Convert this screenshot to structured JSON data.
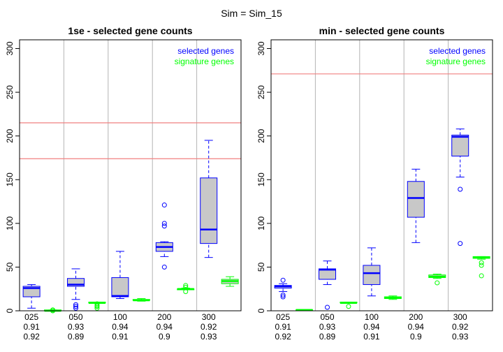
{
  "suptitle": "Sim = Sim_15",
  "chart_data": [
    {
      "type": "boxplot",
      "title": "1se - selected gene counts",
      "ylim": [
        0,
        310
      ],
      "yticks": [
        0,
        50,
        100,
        150,
        200,
        250,
        300
      ],
      "categories": [
        "025",
        "050",
        "100",
        "200",
        "300"
      ],
      "row2_labels": [
        "0.91",
        "0.93",
        "0.94",
        "0.94",
        "0.92"
      ],
      "row3_labels": [
        "0.92",
        "0.89",
        "0.91",
        "0.9",
        "0.93"
      ],
      "legend": {
        "position": "top-right",
        "entries": [
          {
            "name": "selected genes",
            "color": "#0000ff"
          },
          {
            "name": "signature genes",
            "color": "#00ff00"
          }
        ]
      },
      "hlines": [
        215,
        174
      ],
      "hline_color": "#f08080",
      "grid": "vertical",
      "series": [
        {
          "name": "selected genes",
          "color": "#0000ff",
          "fill": "#c8c8c8",
          "boxes": [
            {
              "min": 3,
              "q1": 16,
              "median": 26,
              "q3": 28,
              "max": 30,
              "outliers": []
            },
            {
              "min": 13,
              "q1": 28,
              "median": 30,
              "q3": 37,
              "max": 48,
              "outliers": [
                5,
                3,
                7
              ]
            },
            {
              "min": 14,
              "q1": 16,
              "median": 17,
              "q3": 38,
              "max": 68,
              "outliers": []
            },
            {
              "min": 62,
              "q1": 68,
              "median": 73,
              "q3": 78,
              "max": 79,
              "outliers": [
                121,
                100,
                97,
                50
              ]
            },
            {
              "min": 61,
              "q1": 77,
              "median": 93,
              "q3": 152,
              "max": 195,
              "outliers": []
            }
          ]
        },
        {
          "name": "signature genes",
          "color": "#00ff00",
          "fill": "#c8c8c8",
          "boxes": [
            {
              "min": 0,
              "q1": 0,
              "median": 0,
              "q3": 1,
              "max": 1,
              "outliers": [
                1,
                0
              ]
            },
            {
              "min": 9,
              "q1": 9,
              "median": 9,
              "q3": 10,
              "max": 10,
              "outliers": [
                3,
                5,
                6,
                8
              ]
            },
            {
              "min": 11,
              "q1": 12,
              "median": 12,
              "q3": 13,
              "max": 14,
              "outliers": []
            },
            {
              "min": 24,
              "q1": 24,
              "median": 25,
              "q3": 25,
              "max": 26,
              "outliers": [
                29,
                27,
                22
              ]
            },
            {
              "min": 28,
              "q1": 31,
              "median": 34,
              "q3": 36,
              "max": 39,
              "outliers": []
            }
          ]
        }
      ]
    },
    {
      "type": "boxplot",
      "title": "min - selected gene counts",
      "ylim": [
        0,
        310
      ],
      "yticks": [
        0,
        50,
        100,
        150,
        200,
        250,
        300
      ],
      "categories": [
        "025",
        "050",
        "100",
        "200",
        "300"
      ],
      "row2_labels": [
        "0.91",
        "0.93",
        "0.94",
        "0.94",
        "0.92"
      ],
      "row3_labels": [
        "0.92",
        "0.89",
        "0.91",
        "0.9",
        "0.93"
      ],
      "legend": {
        "position": "top-right",
        "entries": [
          {
            "name": "selected genes",
            "color": "#0000ff"
          },
          {
            "name": "signature genes",
            "color": "#00ff00"
          }
        ]
      },
      "hlines": [
        271
      ],
      "hline_color": "#f08080",
      "grid": "vertical",
      "series": [
        {
          "name": "selected genes",
          "color": "#0000ff",
          "fill": "#c8c8c8",
          "boxes": [
            {
              "min": 22,
              "q1": 26,
              "median": 28,
              "q3": 29,
              "max": 31,
              "outliers": [
                35,
                18,
                16
              ]
            },
            {
              "min": 30,
              "q1": 36,
              "median": 47,
              "q3": 48,
              "max": 57,
              "outliers": [
                4
              ]
            },
            {
              "min": 17,
              "q1": 30,
              "median": 43,
              "q3": 52,
              "max": 72,
              "outliers": []
            },
            {
              "min": 78,
              "q1": 107,
              "median": 129,
              "q3": 148,
              "max": 162,
              "outliers": []
            },
            {
              "min": 153,
              "q1": 177,
              "median": 199,
              "q3": 201,
              "max": 208,
              "outliers": [
                139,
                77
              ]
            }
          ]
        },
        {
          "name": "signature genes",
          "color": "#00ff00",
          "fill": "#c8c8c8",
          "boxes": [
            {
              "min": 0,
              "q1": 0,
              "median": 1,
              "q3": 1,
              "max": 1,
              "outliers": []
            },
            {
              "min": 9,
              "q1": 9,
              "median": 9,
              "q3": 10,
              "max": 10,
              "outliers": [
                5
              ]
            },
            {
              "min": 13,
              "q1": 14,
              "median": 15,
              "q3": 16,
              "max": 17,
              "outliers": []
            },
            {
              "min": 37,
              "q1": 38,
              "median": 39,
              "q3": 41,
              "max": 42,
              "outliers": [
                32
              ]
            },
            {
              "min": 59,
              "q1": 60,
              "median": 61,
              "q3": 62,
              "max": 62,
              "outliers": [
                55,
                52,
                40
              ]
            }
          ]
        }
      ]
    }
  ]
}
